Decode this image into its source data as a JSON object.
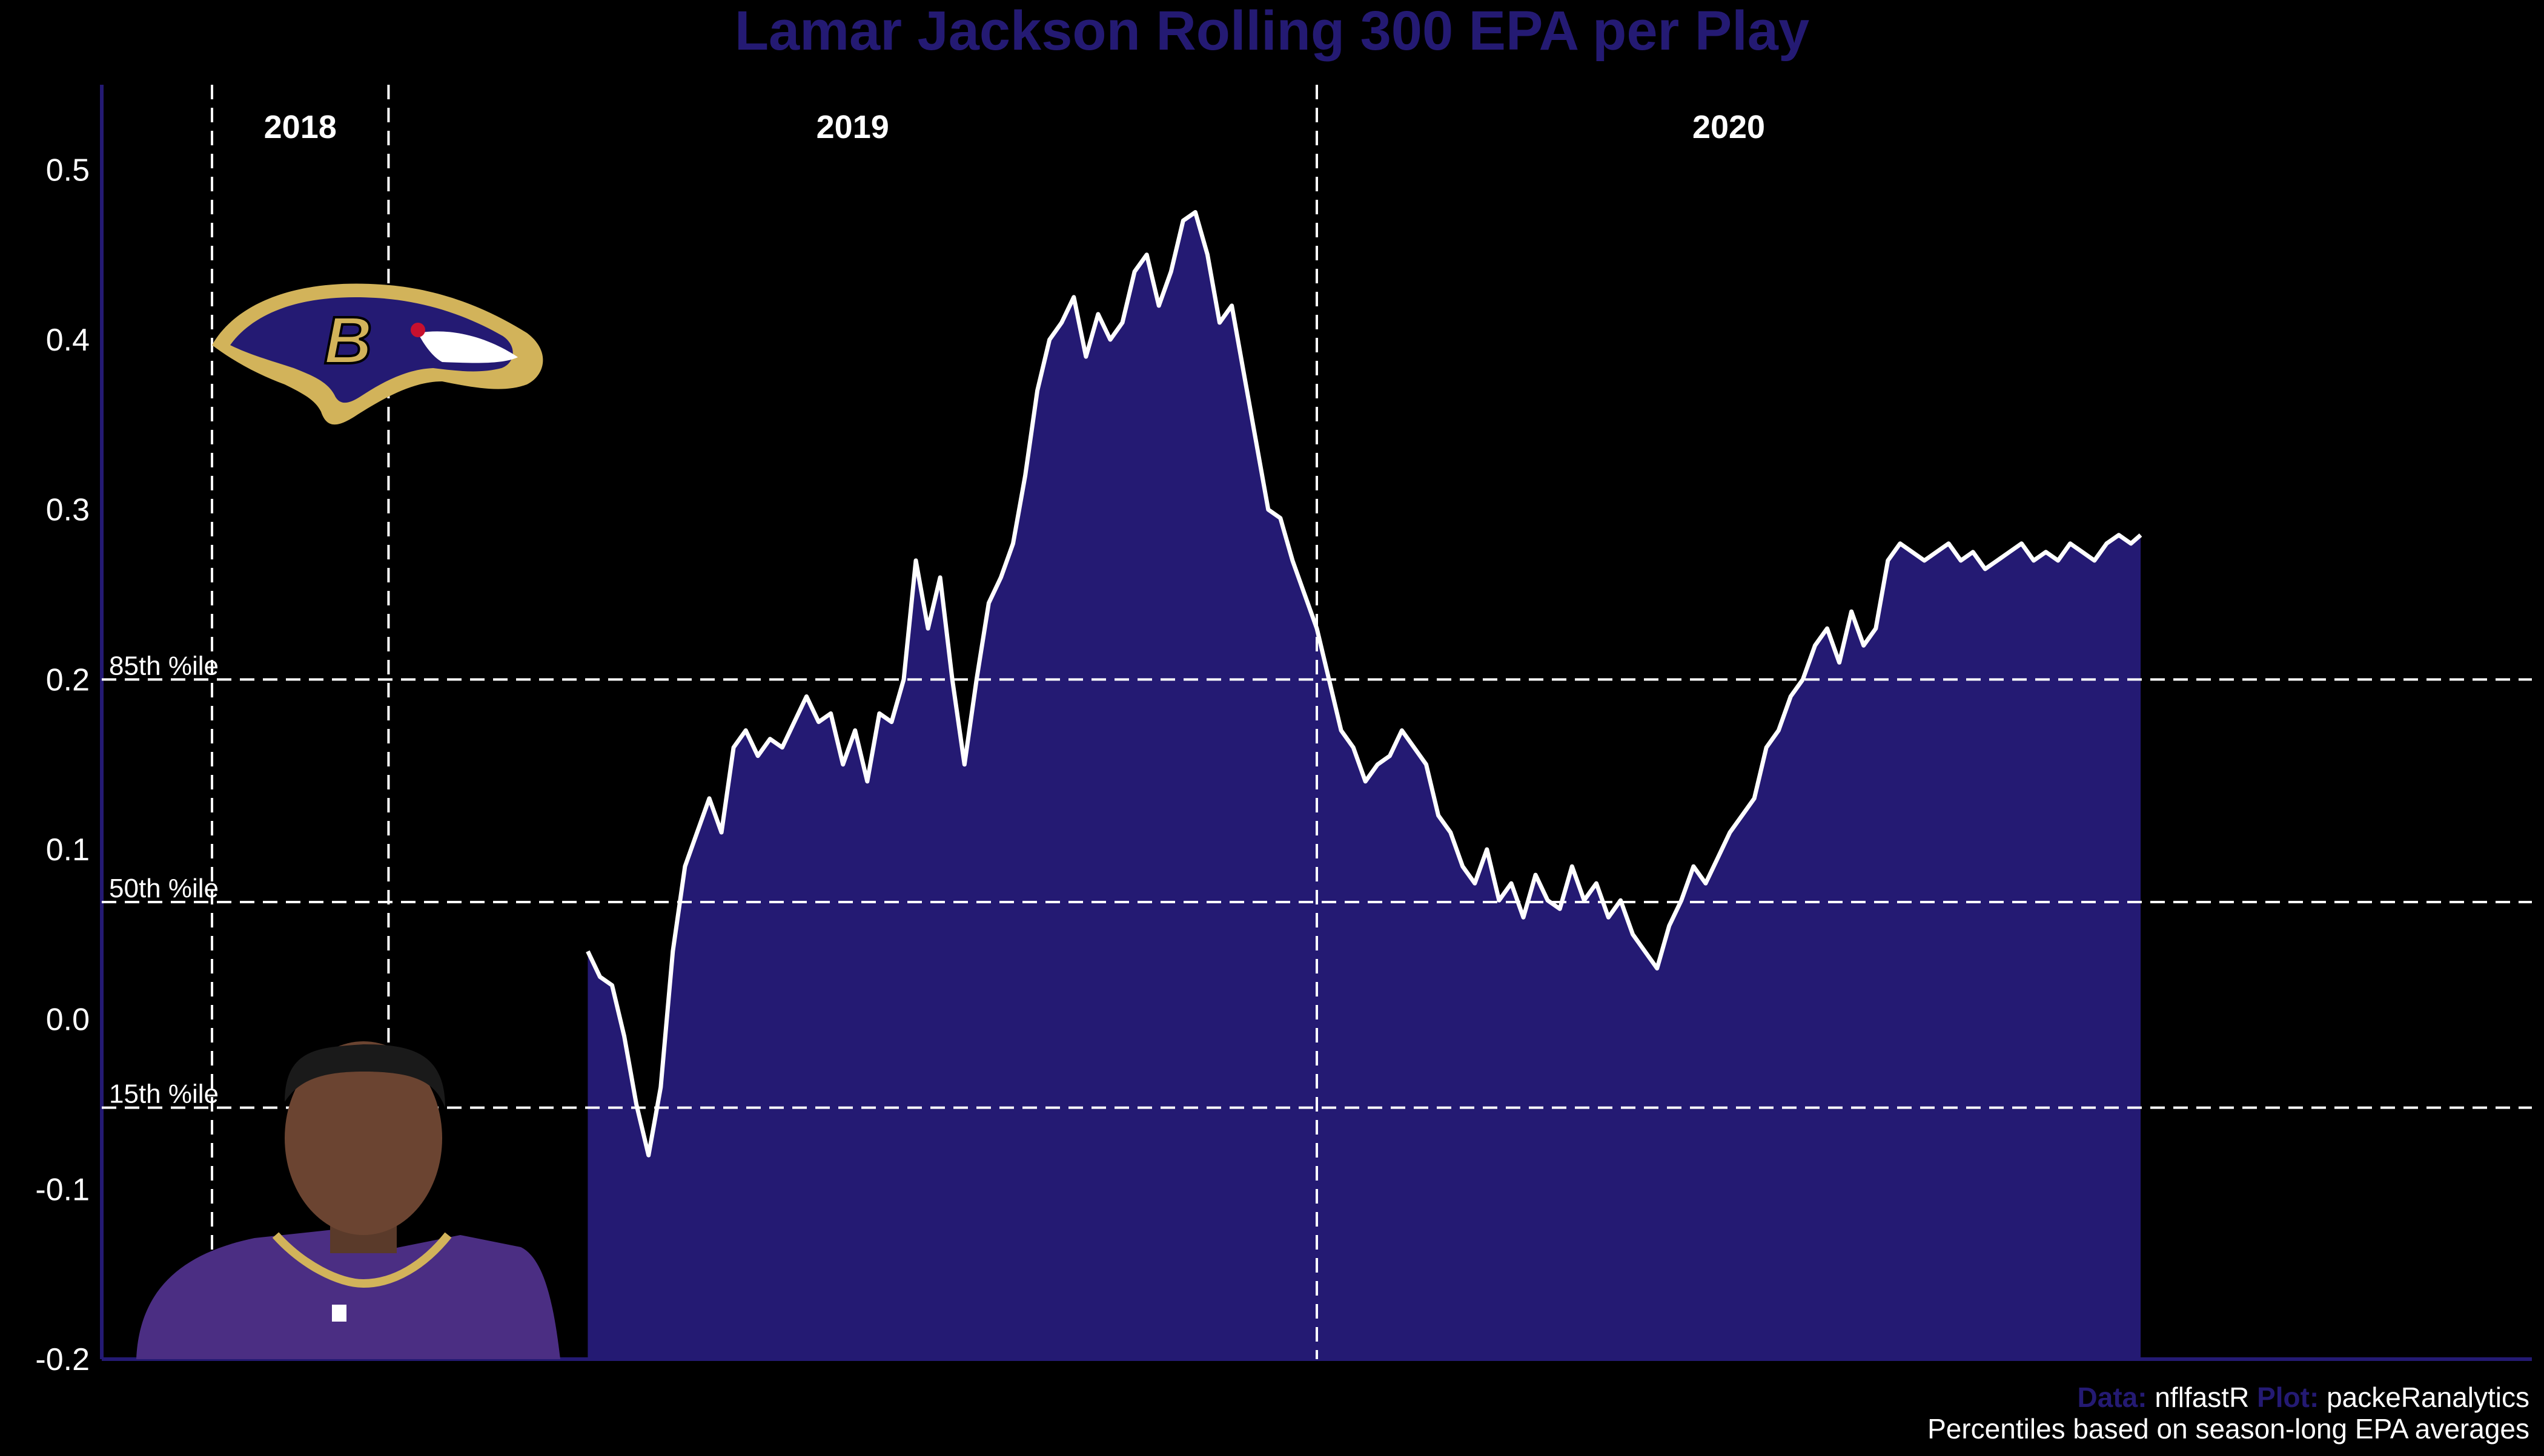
{
  "chart_data": {
    "type": "area",
    "title": "Lamar Jackson Rolling 300 EPA per Play",
    "ylim": [
      -0.2,
      0.55
    ],
    "yticks": [
      "-0.2",
      "-0.1",
      "0.0",
      "0.1",
      "0.2",
      "0.3",
      "0.4",
      "0.5"
    ],
    "ytick_values": [
      -0.2,
      -0.1,
      0.0,
      0.1,
      0.2,
      0.3,
      0.4,
      0.5
    ],
    "seasons": [
      {
        "label": "2018",
        "start": 0,
        "end": 0.118
      },
      {
        "label": "2019",
        "start": 0.118,
        "end": 0.5
      },
      {
        "label": "2020",
        "start": 0.5,
        "end": 0.839
      }
    ],
    "percentiles": [
      {
        "label": "85th %ile",
        "value": 0.2
      },
      {
        "label": "50th %ile",
        "value": 0.069
      },
      {
        "label": "15th %ile",
        "value": -0.052
      }
    ],
    "x": [
      0.2,
      0.205,
      0.21,
      0.215,
      0.22,
      0.225,
      0.23,
      0.235,
      0.24,
      0.245,
      0.25,
      0.255,
      0.26,
      0.265,
      0.27,
      0.275,
      0.28,
      0.285,
      0.29,
      0.295,
      0.3,
      0.305,
      0.31,
      0.315,
      0.32,
      0.325,
      0.33,
      0.335,
      0.34,
      0.345,
      0.35,
      0.355,
      0.36,
      0.365,
      0.37,
      0.375,
      0.38,
      0.385,
      0.39,
      0.395,
      0.4,
      0.405,
      0.41,
      0.415,
      0.42,
      0.425,
      0.43,
      0.435,
      0.44,
      0.445,
      0.45,
      0.455,
      0.46,
      0.465,
      0.47,
      0.475,
      0.48,
      0.485,
      0.49,
      0.495,
      0.5,
      0.505,
      0.51,
      0.515,
      0.52,
      0.525,
      0.53,
      0.535,
      0.54,
      0.545,
      0.55,
      0.555,
      0.56,
      0.565,
      0.57,
      0.575,
      0.58,
      0.585,
      0.59,
      0.595,
      0.6,
      0.605,
      0.61,
      0.615,
      0.62,
      0.625,
      0.63,
      0.635,
      0.64,
      0.645,
      0.65,
      0.655,
      0.66,
      0.665,
      0.67,
      0.675,
      0.68,
      0.685,
      0.69,
      0.695,
      0.7,
      0.705,
      0.71,
      0.715,
      0.72,
      0.725,
      0.73,
      0.735,
      0.74,
      0.745,
      0.75,
      0.755,
      0.76,
      0.765,
      0.77,
      0.775,
      0.78,
      0.785,
      0.79,
      0.795,
      0.8,
      0.805,
      0.81,
      0.815,
      0.82,
      0.825,
      0.83,
      0.835,
      0.839
    ],
    "y": [
      0.04,
      0.025,
      0.02,
      -0.01,
      -0.05,
      -0.08,
      -0.04,
      0.04,
      0.09,
      0.11,
      0.13,
      0.11,
      0.16,
      0.17,
      0.155,
      0.165,
      0.16,
      0.175,
      0.19,
      0.175,
      0.18,
      0.15,
      0.17,
      0.14,
      0.18,
      0.175,
      0.2,
      0.27,
      0.23,
      0.26,
      0.2,
      0.15,
      0.2,
      0.245,
      0.26,
      0.28,
      0.32,
      0.37,
      0.4,
      0.41,
      0.425,
      0.39,
      0.415,
      0.4,
      0.41,
      0.44,
      0.45,
      0.42,
      0.44,
      0.47,
      0.475,
      0.45,
      0.41,
      0.42,
      0.38,
      0.34,
      0.3,
      0.295,
      0.27,
      0.25,
      0.23,
      0.2,
      0.17,
      0.16,
      0.14,
      0.15,
      0.155,
      0.17,
      0.16,
      0.15,
      0.12,
      0.11,
      0.09,
      0.08,
      0.1,
      0.07,
      0.08,
      0.06,
      0.085,
      0.07,
      0.065,
      0.09,
      0.07,
      0.08,
      0.06,
      0.07,
      0.05,
      0.04,
      0.03,
      0.055,
      0.07,
      0.09,
      0.08,
      0.095,
      0.11,
      0.12,
      0.13,
      0.16,
      0.17,
      0.19,
      0.2,
      0.22,
      0.23,
      0.21,
      0.24,
      0.22,
      0.23,
      0.27,
      0.28,
      0.275,
      0.27,
      0.275,
      0.28,
      0.27,
      0.275,
      0.265,
      0.27,
      0.275,
      0.28,
      0.27,
      0.275,
      0.27,
      0.28,
      0.275,
      0.27,
      0.28,
      0.285,
      0.28,
      0.285
    ],
    "grid": false,
    "colors": {
      "fill": "#241a73",
      "line": "#ffffff",
      "title": "#241a73",
      "axis": "#241a73",
      "background": "#000000"
    }
  },
  "caption": {
    "data_label": "Data:",
    "data_value": "nflfastR",
    "plot_label": "Plot:",
    "plot_value": "packeRanalytics",
    "note": "Percentiles based on season-long EPA averages"
  },
  "images": {
    "logo": "ravens-logo",
    "photo": "player-headshot"
  }
}
